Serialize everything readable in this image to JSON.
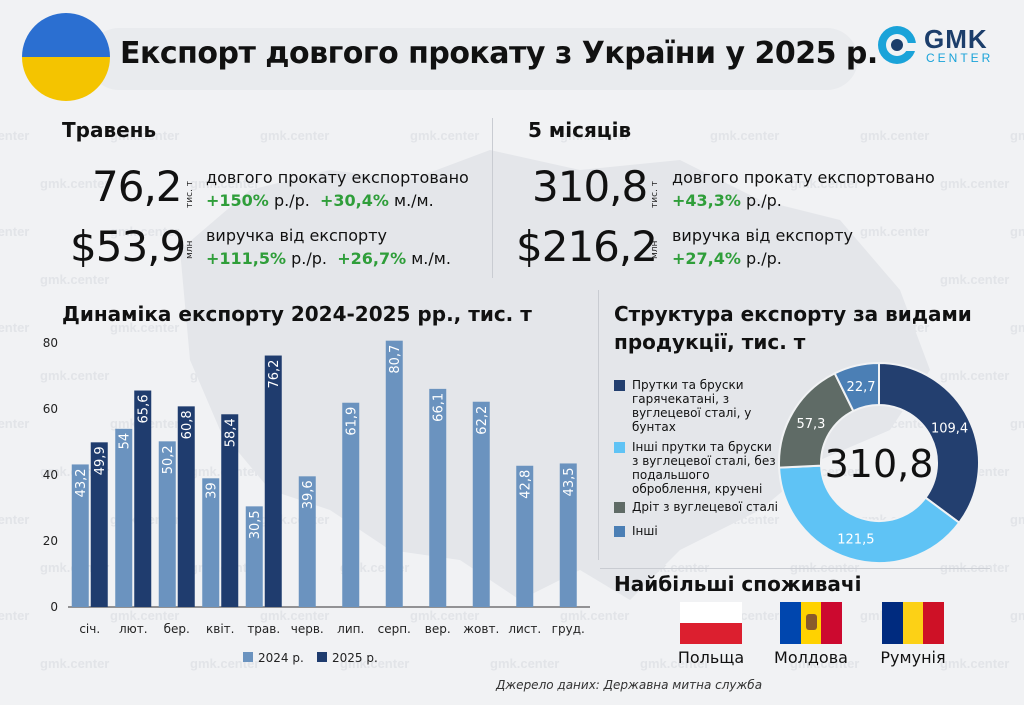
{
  "header": {
    "title": "Експорт довгого прокату з України у 2025 р.",
    "logo_main": "GMK",
    "logo_sub": "CENTER"
  },
  "watermark": "gmk.center",
  "may": {
    "title": "Травень",
    "volume_value": "76,2",
    "volume_unit": "тис. т",
    "volume_desc": "довгого прокату експортовано",
    "volume_yoy": "+150%",
    "volume_yoy_suffix": "р./р.",
    "volume_mom": "+30,4%",
    "volume_mom_suffix": "м./м.",
    "revenue_value": "$53,9",
    "revenue_unit": "млн",
    "revenue_desc": "виручка від експорту",
    "revenue_yoy": "+111,5%",
    "revenue_yoy_suffix": "р./р.",
    "revenue_mom": "+26,7%",
    "revenue_mom_suffix": "м./м."
  },
  "five_months": {
    "title": "5 місяців",
    "volume_value": "310,8",
    "volume_unit": "тис. т",
    "volume_desc": "довгого прокату експортовано",
    "volume_yoy": "+43,3%",
    "volume_yoy_suffix": "р./р.",
    "revenue_value": "$216,2",
    "revenue_unit": "млн",
    "revenue_desc": "виручка від експорту",
    "revenue_yoy": "+27,4%",
    "revenue_yoy_suffix": "р./р."
  },
  "chart_data": [
    {
      "type": "bar",
      "title": "Динаміка експорту 2024-2025 рр., тис. т",
      "categories": [
        "січ.",
        "лют.",
        "бер.",
        "квіт.",
        "трав.",
        "черв.",
        "лип.",
        "серп.",
        "вер.",
        "жовт.",
        "лист.",
        "груд."
      ],
      "series": [
        {
          "name": "2024 р.",
          "color": "#6b93bf",
          "values": [
            43.2,
            54,
            50.2,
            39,
            30.5,
            39.6,
            61.9,
            80.7,
            66.1,
            62.2,
            42.8,
            43.5
          ]
        },
        {
          "name": "2025 р.",
          "color": "#1f3c6e",
          "values": [
            49.9,
            65.6,
            60.8,
            58.4,
            76.2,
            null,
            null,
            null,
            null,
            null,
            null,
            null
          ]
        }
      ],
      "data_labels": {
        "2024 р.": [
          "43,2",
          "54",
          "50,2",
          "39",
          "30,5",
          "39,6",
          "61,9",
          "80,7",
          "66,1",
          "62,2",
          "42,8",
          "43,5"
        ],
        "2025 р.": [
          "49,9",
          "65,6",
          "60,8",
          "58,4",
          "76,2"
        ]
      },
      "yticks": [
        "0",
        "20",
        "40",
        "60",
        "80"
      ],
      "ylim": [
        0,
        80
      ],
      "legend_position": "bottom"
    },
    {
      "type": "pie",
      "title": "Структура експорту за видами продукції, тис. т",
      "center_label": "310,8",
      "slices": [
        {
          "name": "Прутки та бруски гарячекатані, з вуглецевої сталі, у бунтах",
          "value": 109.4,
          "label": "109,4",
          "color": "#233f6f"
        },
        {
          "name": "Інші прутки та бруски з вуглецевої сталі, без подальшого оброблення, кручені",
          "value": 121.5,
          "label": "121,5",
          "color": "#5fc3f5"
        },
        {
          "name": "Дріт з вуглецевої сталі",
          "value": 57.3,
          "label": "57,3",
          "color": "#5f6b66"
        },
        {
          "name": "Інші",
          "value": 22.7,
          "label": "22,7",
          "color": "#4b7fb5"
        }
      ],
      "legend_position": "left"
    }
  ],
  "consumers": {
    "title": "Найбільші споживачі",
    "countries": [
      "Польща",
      "Молдова",
      "Румунія"
    ]
  },
  "source": "Джерело даних: Державна митна служба"
}
